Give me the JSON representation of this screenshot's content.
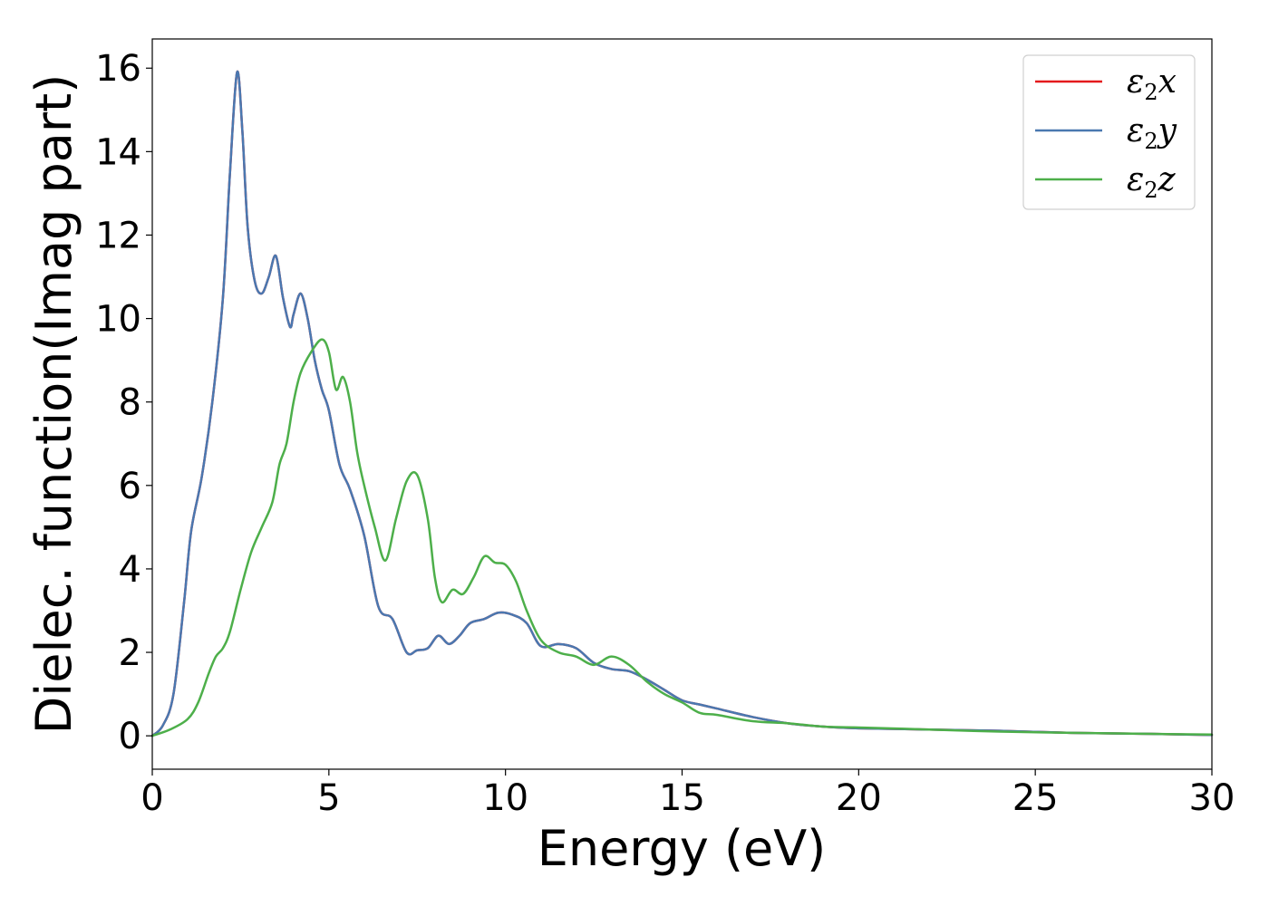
{
  "chart_data": {
    "type": "line",
    "xlabel": "Energy (eV)",
    "ylabel": "Dielec. function(Imag part)",
    "xlim": [
      0,
      30
    ],
    "ylim": [
      -0.8,
      16.7
    ],
    "xticks": [
      0,
      5,
      10,
      15,
      20,
      25,
      30
    ],
    "yticks": [
      0,
      2,
      4,
      6,
      8,
      10,
      12,
      14,
      16
    ],
    "grid": false,
    "legend_position": "top-right",
    "series": [
      {
        "name": "ε2x",
        "legend": {
          "base": "ε",
          "sub": "2",
          "var": "x"
        },
        "color": "#e41a1c",
        "x": [
          0,
          0.3,
          0.6,
          0.9,
          1.1,
          1.4,
          1.7,
          2.0,
          2.2,
          2.4,
          2.55,
          2.7,
          2.9,
          3.1,
          3.3,
          3.5,
          3.7,
          3.9,
          4.0,
          4.2,
          4.4,
          4.6,
          4.8,
          5.0,
          5.3,
          5.6,
          6.0,
          6.4,
          6.8,
          7.2,
          7.5,
          7.8,
          8.1,
          8.4,
          8.7,
          9.0,
          9.4,
          9.8,
          10.2,
          10.6,
          11.0,
          11.5,
          12.0,
          12.5,
          13.0,
          13.5,
          14.0,
          14.5,
          15.0,
          15.5,
          16.0,
          17.0,
          18.0,
          19.0,
          20.0,
          22.0,
          24.0,
          26.0,
          28.0,
          30.0
        ],
        "values": [
          0,
          0.25,
          1.0,
          3.2,
          4.9,
          6.2,
          8.0,
          10.5,
          13.5,
          15.9,
          14.5,
          12.2,
          10.9,
          10.6,
          11.0,
          11.5,
          10.5,
          9.8,
          10.1,
          10.6,
          10.0,
          9.0,
          8.3,
          7.8,
          6.5,
          5.9,
          4.8,
          3.1,
          2.8,
          2.0,
          2.05,
          2.1,
          2.4,
          2.2,
          2.4,
          2.7,
          2.8,
          2.95,
          2.9,
          2.7,
          2.15,
          2.2,
          2.1,
          1.75,
          1.6,
          1.55,
          1.35,
          1.1,
          0.85,
          0.75,
          0.65,
          0.45,
          0.3,
          0.22,
          0.18,
          0.15,
          0.12,
          0.07,
          0.05,
          0.02
        ]
      },
      {
        "name": "ε2y",
        "legend": {
          "base": "ε",
          "sub": "2",
          "var": "y"
        },
        "color": "#4a78b0",
        "x": [
          0,
          0.3,
          0.6,
          0.9,
          1.1,
          1.4,
          1.7,
          2.0,
          2.2,
          2.4,
          2.55,
          2.7,
          2.9,
          3.1,
          3.3,
          3.5,
          3.7,
          3.9,
          4.0,
          4.2,
          4.4,
          4.6,
          4.8,
          5.0,
          5.3,
          5.6,
          6.0,
          6.4,
          6.8,
          7.2,
          7.5,
          7.8,
          8.1,
          8.4,
          8.7,
          9.0,
          9.4,
          9.8,
          10.2,
          10.6,
          11.0,
          11.5,
          12.0,
          12.5,
          13.0,
          13.5,
          14.0,
          14.5,
          15.0,
          15.5,
          16.0,
          17.0,
          18.0,
          19.0,
          20.0,
          22.0,
          24.0,
          26.0,
          28.0,
          30.0
        ],
        "values": [
          0,
          0.25,
          1.0,
          3.2,
          4.9,
          6.2,
          8.0,
          10.5,
          13.5,
          15.9,
          14.5,
          12.2,
          10.9,
          10.6,
          11.0,
          11.5,
          10.5,
          9.8,
          10.1,
          10.6,
          10.0,
          9.0,
          8.3,
          7.8,
          6.5,
          5.9,
          4.8,
          3.1,
          2.8,
          2.0,
          2.05,
          2.1,
          2.4,
          2.2,
          2.4,
          2.7,
          2.8,
          2.95,
          2.9,
          2.7,
          2.15,
          2.2,
          2.1,
          1.75,
          1.6,
          1.55,
          1.35,
          1.1,
          0.85,
          0.75,
          0.65,
          0.45,
          0.3,
          0.22,
          0.18,
          0.15,
          0.12,
          0.07,
          0.05,
          0.02
        ]
      },
      {
        "name": "ε2z",
        "legend": {
          "base": "ε",
          "sub": "2",
          "var": "z"
        },
        "color": "#4daf4a",
        "x": [
          0,
          0.5,
          1.0,
          1.3,
          1.6,
          1.8,
          2.0,
          2.2,
          2.5,
          2.8,
          3.1,
          3.4,
          3.6,
          3.8,
          4.0,
          4.2,
          4.5,
          4.8,
          5.0,
          5.2,
          5.4,
          5.6,
          5.8,
          6.0,
          6.3,
          6.6,
          6.9,
          7.2,
          7.5,
          7.8,
          8.0,
          8.2,
          8.5,
          8.8,
          9.1,
          9.4,
          9.7,
          10.0,
          10.3,
          10.6,
          11.0,
          11.5,
          12.0,
          12.5,
          13.0,
          13.5,
          14.0,
          14.5,
          15.0,
          15.5,
          16.0,
          17.0,
          18.0,
          19.0,
          20.0,
          22.0,
          24.0,
          26.0,
          28.0,
          30.0
        ],
        "values": [
          0,
          0.15,
          0.4,
          0.8,
          1.5,
          1.9,
          2.1,
          2.5,
          3.5,
          4.4,
          5.0,
          5.6,
          6.5,
          7.0,
          8.0,
          8.7,
          9.2,
          9.5,
          9.2,
          8.3,
          8.6,
          8.0,
          6.8,
          6.0,
          5.0,
          4.2,
          5.2,
          6.1,
          6.25,
          5.2,
          3.8,
          3.2,
          3.5,
          3.4,
          3.8,
          4.3,
          4.15,
          4.1,
          3.7,
          3.0,
          2.3,
          2.0,
          1.9,
          1.7,
          1.9,
          1.7,
          1.3,
          1.0,
          0.8,
          0.55,
          0.5,
          0.35,
          0.3,
          0.22,
          0.2,
          0.15,
          0.1,
          0.07,
          0.05,
          0.03
        ]
      }
    ]
  }
}
